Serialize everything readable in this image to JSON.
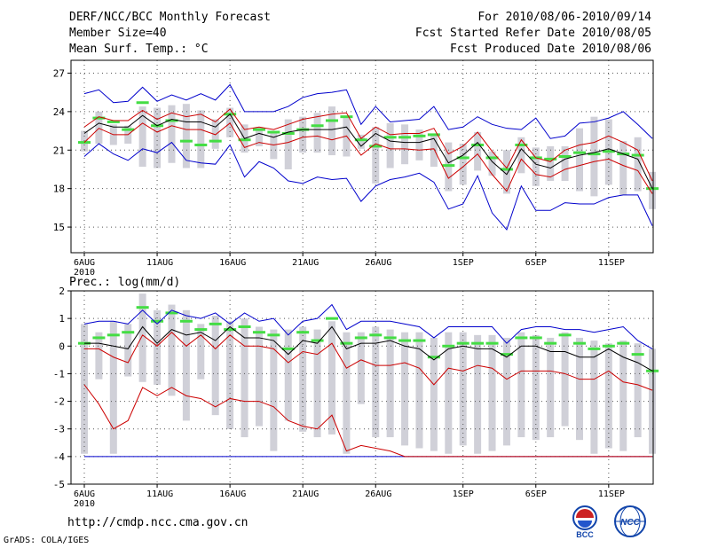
{
  "header": {
    "title": "DERF/NCC/BCC Monthly Forecast",
    "member_size": "Member Size=40",
    "variable": "Mean Surf. Temp.: °C",
    "period": "For 2010/08/06-2010/09/14",
    "started": "Fcst Started Refer Date 2010/08/05",
    "produced": "Fcst Produced Date 2010/08/06"
  },
  "footer": {
    "url": "http://cmdp.ncc.cma.gov.cn",
    "grads": "GrADS: COLA/IGES",
    "logo_left_text": "BCC",
    "logo_right_text": "NCC"
  },
  "colors": {
    "box": "#d0d0d8",
    "median": "#44dd44",
    "mean": "#000000",
    "spread": "#cc0000",
    "extreme": "#0000cc",
    "grid": "#555555"
  },
  "chart_data": [
    {
      "type": "line",
      "title": "Mean Surf. Temp.: °C",
      "x": [
        "08/06",
        "08/07",
        "08/08",
        "08/09",
        "08/10",
        "08/11",
        "08/12",
        "08/13",
        "08/14",
        "08/15",
        "08/16",
        "08/17",
        "08/18",
        "08/19",
        "08/20",
        "08/21",
        "08/22",
        "08/23",
        "08/24",
        "08/25",
        "08/26",
        "08/27",
        "08/28",
        "08/29",
        "08/30",
        "08/31",
        "09/01",
        "09/02",
        "09/03",
        "09/04",
        "09/05",
        "09/06",
        "09/07",
        "09/08",
        "09/09",
        "09/10",
        "09/11",
        "09/12",
        "09/13",
        "09/14"
      ],
      "xticks": [
        {
          "i": 0,
          "label": "6AUG",
          "sub": "2010"
        },
        {
          "i": 5,
          "label": "11AUG"
        },
        {
          "i": 10,
          "label": "16AUG"
        },
        {
          "i": 15,
          "label": "21AUG"
        },
        {
          "i": 20,
          "label": "26AUG"
        },
        {
          "i": 26,
          "label": "1SEP"
        },
        {
          "i": 31,
          "label": "6SEP"
        },
        {
          "i": 36,
          "label": "11SEP"
        }
      ],
      "ylim": [
        13,
        28
      ],
      "yticks": [
        15,
        18,
        21,
        24,
        27
      ],
      "grid": true,
      "series": [
        {
          "name": "max",
          "values": [
            25.4,
            25.7,
            24.7,
            24.8,
            25.9,
            24.8,
            25.3,
            24.9,
            25.4,
            24.9,
            26.1,
            24.0,
            24.0,
            24.0,
            24.4,
            25.1,
            25.4,
            25.5,
            25.7,
            23.0,
            24.4,
            23.2,
            23.3,
            23.4,
            24.4,
            22.6,
            22.8,
            23.6,
            23.0,
            22.7,
            22.6,
            23.5,
            21.9,
            22.1,
            23.1,
            23.2,
            23.5,
            24.0,
            23.0,
            21.9
          ]
        },
        {
          "name": "spread_upper",
          "values": [
            22.8,
            23.6,
            23.3,
            23.3,
            24.1,
            23.4,
            23.9,
            23.6,
            23.8,
            23.2,
            24.2,
            22.6,
            22.8,
            22.6,
            23.0,
            23.4,
            23.6,
            23.8,
            23.9,
            21.9,
            22.8,
            22.2,
            22.3,
            22.3,
            22.7,
            20.7,
            21.3,
            22.4,
            20.9,
            19.6,
            21.8,
            20.4,
            20.1,
            21.0,
            21.4,
            21.6,
            22.1,
            21.6,
            21.0,
            18.6
          ]
        },
        {
          "name": "mean",
          "values": [
            22.3,
            23.1,
            22.8,
            22.8,
            23.7,
            22.9,
            23.4,
            23.2,
            23.2,
            22.8,
            23.8,
            21.9,
            22.3,
            22.0,
            22.4,
            22.6,
            22.6,
            22.6,
            22.8,
            21.3,
            22.3,
            21.7,
            21.6,
            21.6,
            21.9,
            20.0,
            20.6,
            21.6,
            20.1,
            19.1,
            21.1,
            19.9,
            19.6,
            20.3,
            20.6,
            20.8,
            21.1,
            20.7,
            20.3,
            18.0
          ]
        },
        {
          "name": "spread_lower",
          "values": [
            21.6,
            22.7,
            22.2,
            22.2,
            23.1,
            22.4,
            22.9,
            22.6,
            22.6,
            22.2,
            23.1,
            21.2,
            21.6,
            21.4,
            21.6,
            22.0,
            22.1,
            21.8,
            22.1,
            20.6,
            21.5,
            21.1,
            21.1,
            21.0,
            21.1,
            18.8,
            19.7,
            20.7,
            19.1,
            17.8,
            20.3,
            19.1,
            18.9,
            19.5,
            19.8,
            20.1,
            20.3,
            19.8,
            19.4,
            17.6
          ]
        },
        {
          "name": "min",
          "values": [
            20.5,
            21.5,
            20.7,
            20.2,
            21.1,
            20.8,
            21.6,
            20.2,
            20.0,
            19.9,
            21.4,
            18.9,
            20.1,
            19.6,
            18.6,
            18.4,
            18.9,
            18.7,
            18.8,
            17.0,
            18.2,
            18.7,
            18.9,
            19.2,
            18.5,
            16.4,
            16.8,
            19.0,
            16.1,
            14.8,
            18.2,
            16.3,
            16.3,
            16.9,
            16.8,
            16.8,
            17.3,
            17.5,
            17.5,
            15.1
          ]
        },
        {
          "name": "median",
          "values": [
            21.6,
            23.5,
            23.2,
            22.6,
            24.7,
            22.9,
            23.3,
            21.7,
            21.4,
            21.7,
            23.8,
            21.8,
            22.6,
            22.4,
            22.3,
            22.6,
            22.9,
            23.3,
            23.6,
            21.8,
            21.3,
            22.0,
            22.0,
            22.1,
            22.2,
            19.8,
            20.4,
            21.4,
            20.4,
            19.5,
            21.4,
            20.4,
            20.3,
            20.5,
            20.8,
            20.7,
            20.9,
            20.7,
            20.6,
            18.0
          ]
        },
        {
          "name": "box_high",
          "values": [
            22.5,
            24.0,
            23.0,
            22.9,
            24.4,
            24.3,
            24.5,
            24.6,
            24.1,
            23.4,
            24.3,
            23.0,
            22.8,
            22.5,
            23.4,
            23.6,
            23.9,
            24.4,
            23.5,
            22.2,
            22.8,
            23.1,
            23.0,
            22.6,
            22.3,
            21.6,
            21.5,
            22.4,
            20.9,
            21.0,
            22.0,
            21.2,
            21.3,
            21.3,
            22.7,
            23.6,
            23.4,
            21.7,
            22.0,
            19.3
          ]
        },
        {
          "name": "box_low",
          "values": [
            20.9,
            21.5,
            21.4,
            21.5,
            19.7,
            19.6,
            20.0,
            19.6,
            19.6,
            21.1,
            22.0,
            20.8,
            21.3,
            20.3,
            19.5,
            20.8,
            20.8,
            20.6,
            20.5,
            21.1,
            18.4,
            19.6,
            19.9,
            20.2,
            19.7,
            17.8,
            18.3,
            19.4,
            19.0,
            17.6,
            19.2,
            18.2,
            18.6,
            18.6,
            17.8,
            17.4,
            18.3,
            17.5,
            17.8,
            16.4
          ]
        }
      ]
    },
    {
      "type": "line",
      "title": "Prec.: log(mm/d)",
      "x": [
        "08/06",
        "08/07",
        "08/08",
        "08/09",
        "08/10",
        "08/11",
        "08/12",
        "08/13",
        "08/14",
        "08/15",
        "08/16",
        "08/17",
        "08/18",
        "08/19",
        "08/20",
        "08/21",
        "08/22",
        "08/23",
        "08/24",
        "08/25",
        "08/26",
        "08/27",
        "08/28",
        "08/29",
        "08/30",
        "08/31",
        "09/01",
        "09/02",
        "09/03",
        "09/04",
        "09/05",
        "09/06",
        "09/07",
        "09/08",
        "09/09",
        "09/10",
        "09/11",
        "09/12",
        "09/13",
        "09/14"
      ],
      "xticks": [
        {
          "i": 0,
          "label": "6AUG",
          "sub": "2010"
        },
        {
          "i": 5,
          "label": "11AUG"
        },
        {
          "i": 10,
          "label": "16AUG"
        },
        {
          "i": 15,
          "label": "21AUG"
        },
        {
          "i": 20,
          "label": "26AUG"
        },
        {
          "i": 26,
          "label": "1SEP"
        },
        {
          "i": 31,
          "label": "6SEP"
        },
        {
          "i": 36,
          "label": "11SEP"
        }
      ],
      "ylim": [
        -5,
        2
      ],
      "yticks": [
        -5,
        -4,
        -3,
        -2,
        -1,
        0,
        1,
        2
      ],
      "grid": true,
      "series": [
        {
          "name": "max",
          "values": [
            0.8,
            0.9,
            0.9,
            0.8,
            1.3,
            0.8,
            1.3,
            1.1,
            1.0,
            1.2,
            0.8,
            1.2,
            0.9,
            1.0,
            0.4,
            0.9,
            1.0,
            1.5,
            0.6,
            0.9,
            0.9,
            0.9,
            0.8,
            0.7,
            0.3,
            0.7,
            0.7,
            0.7,
            0.7,
            0.1,
            0.6,
            0.7,
            0.7,
            0.6,
            0.6,
            0.5,
            0.6,
            0.7,
            0.2,
            -0.1
          ]
        },
        {
          "name": "mean",
          "values": [
            0.1,
            0.1,
            0.0,
            -0.1,
            0.7,
            0.1,
            0.6,
            0.4,
            0.5,
            0.2,
            0.7,
            0.3,
            0.3,
            0.2,
            -0.3,
            0.2,
            0.1,
            0.7,
            -0.1,
            0.1,
            0.1,
            0.2,
            0.0,
            -0.1,
            -0.5,
            -0.1,
            0.0,
            -0.1,
            -0.1,
            -0.4,
            0.0,
            0.0,
            -0.2,
            -0.2,
            -0.4,
            -0.4,
            -0.1,
            -0.4,
            -0.6,
            -0.9
          ]
        },
        {
          "name": "spread_upper",
          "values": [
            -0.1,
            -0.1,
            -0.4,
            -0.6,
            0.4,
            0.0,
            0.5,
            0.0,
            0.4,
            -0.1,
            0.4,
            0.0,
            0.0,
            -0.1,
            -0.6,
            -0.2,
            -0.3,
            0.1,
            -0.8,
            -0.5,
            -0.7,
            -0.7,
            -0.6,
            -0.8,
            -1.4,
            -0.8,
            -0.9,
            -0.7,
            -0.8,
            -1.2,
            -0.9,
            -0.9,
            -0.9,
            -1.0,
            -1.2,
            -1.2,
            -0.9,
            -1.3,
            -1.4,
            -1.6
          ]
        },
        {
          "name": "spread_lower",
          "values": [
            -1.4,
            -2.1,
            -3.0,
            -2.7,
            -1.5,
            -1.8,
            -1.5,
            -1.8,
            -1.9,
            -2.2,
            -1.9,
            -2.0,
            -2.0,
            -2.2,
            -2.7,
            -2.9,
            -3.0,
            -2.5,
            -3.8,
            -3.6,
            -3.7,
            -3.8,
            -4.0,
            -4.0,
            -4.0,
            -4.0,
            -4.0,
            -4.0,
            -4.0,
            -4.0,
            -4.0,
            -4.0,
            -4.0,
            -4.0,
            -4.0,
            -4.0,
            -4.0,
            -4.0,
            -4.0,
            -4.0
          ]
        },
        {
          "name": "min",
          "values": [
            -4.0,
            -4.0,
            -4.0,
            -4.0,
            -4.0,
            -4.0,
            -4.0,
            -4.0,
            -4.0,
            -4.0,
            -4.0,
            -4.0,
            -4.0,
            -4.0,
            -4.0,
            -4.0,
            -4.0,
            -4.0,
            -4.0,
            -4.0,
            -4.0,
            -4.0,
            -4.0,
            -4.0,
            -4.0,
            -4.0,
            -4.0,
            -4.0,
            -4.0,
            -4.0,
            -4.0,
            -4.0,
            -4.0,
            -4.0,
            -4.0,
            -4.0,
            -4.0,
            -4.0,
            -4.0,
            -4.0
          ]
        },
        {
          "name": "median",
          "values": [
            0.1,
            0.3,
            0.4,
            0.5,
            1.4,
            0.9,
            1.2,
            0.9,
            0.6,
            0.8,
            0.6,
            0.7,
            0.5,
            0.4,
            -0.1,
            0.5,
            0.2,
            1.0,
            0.1,
            0.3,
            0.4,
            0.3,
            0.2,
            0.2,
            -0.4,
            0.0,
            0.1,
            0.1,
            0.1,
            -0.3,
            0.3,
            0.3,
            0.1,
            0.4,
            0.1,
            -0.1,
            0.0,
            0.1,
            -0.3,
            -0.9
          ]
        },
        {
          "name": "box_high",
          "values": [
            0.8,
            0.5,
            0.9,
            0.8,
            1.9,
            1.3,
            1.5,
            1.3,
            0.8,
            1.1,
            0.9,
            1.0,
            0.7,
            0.6,
            0.6,
            0.7,
            0.6,
            0.9,
            0.5,
            0.5,
            0.7,
            0.6,
            0.5,
            0.5,
            0.3,
            0.5,
            0.5,
            0.4,
            0.4,
            0.3,
            0.5,
            0.4,
            0.3,
            0.5,
            0.3,
            0.2,
            0.1,
            0.2,
            0.1,
            -0.1
          ]
        },
        {
          "name": "box_low",
          "values": [
            -3.9,
            -1.2,
            -3.9,
            -1.1,
            -1.3,
            -1.4,
            -1.8,
            -2.7,
            -1.2,
            -2.5,
            -3.0,
            -3.3,
            -2.9,
            -3.8,
            -2.7,
            -3.1,
            -3.3,
            -3.2,
            -3.9,
            -2.1,
            -3.3,
            -3.3,
            -3.6,
            -3.7,
            -3.8,
            -3.9,
            -3.6,
            -3.9,
            -3.8,
            -3.6,
            -3.3,
            -3.4,
            -3.3,
            -2.9,
            -3.4,
            -3.9,
            -3.7,
            -3.8,
            -3.3,
            -3.9
          ]
        }
      ]
    }
  ]
}
